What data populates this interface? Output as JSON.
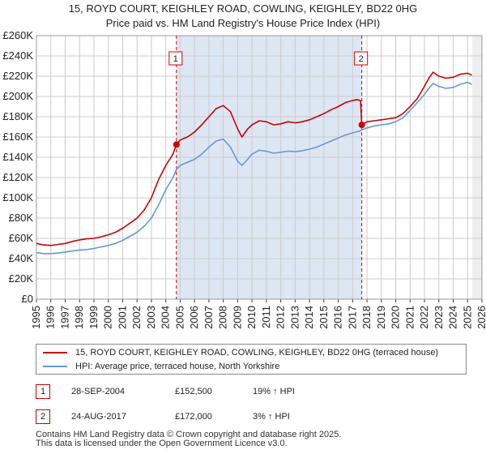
{
  "title_line1": "15, ROYD COURT, KEIGHLEY ROAD, COWLING, KEIGHLEY, BD22 0HG",
  "title_line2": "Price paid vs. HM Land Registry's House Price Index (HPI)",
  "chart_data": {
    "type": "line",
    "title": "15, ROYD COURT, KEIGHLEY ROAD, COWLING, KEIGHLEY, BD22 0HG — Price paid vs. HM Land Registry's House Price Index (HPI)",
    "xlabel": "",
    "ylabel": "",
    "xlim": [
      1995,
      2026
    ],
    "ylim": [
      0,
      260000
    ],
    "grid": true,
    "x_ticks": [
      "1995",
      "1996",
      "1997",
      "1998",
      "1999",
      "2000",
      "2001",
      "2002",
      "2003",
      "2004",
      "2005",
      "2006",
      "2007",
      "2008",
      "2009",
      "2010",
      "2011",
      "2012",
      "2013",
      "2014",
      "2015",
      "2016",
      "2017",
      "2018",
      "2019",
      "2020",
      "2021",
      "2022",
      "2023",
      "2024",
      "2025",
      "2026"
    ],
    "y_ticks": [
      "£0",
      "£20K",
      "£40K",
      "£60K",
      "£80K",
      "£100K",
      "£120K",
      "£140K",
      "£160K",
      "£180K",
      "£200K",
      "£220K",
      "£240K",
      "£260K"
    ],
    "series": [
      {
        "name": "15, ROYD COURT, KEIGHLEY ROAD, COWLING, KEIGHLEY, BD22 0HG (terraced house)",
        "color": "#cc0000",
        "points": [
          [
            1995.0,
            55000
          ],
          [
            1995.5,
            53500
          ],
          [
            1996.0,
            53000
          ],
          [
            1996.5,
            54000
          ],
          [
            1997.0,
            55000
          ],
          [
            1997.5,
            57000
          ],
          [
            1998.0,
            58500
          ],
          [
            1998.5,
            59500
          ],
          [
            1999.0,
            60000
          ],
          [
            1999.5,
            61500
          ],
          [
            2000.0,
            63500
          ],
          [
            2000.5,
            66000
          ],
          [
            2001.0,
            70000
          ],
          [
            2001.5,
            75000
          ],
          [
            2002.0,
            80000
          ],
          [
            2002.5,
            88000
          ],
          [
            2003.0,
            100000
          ],
          [
            2003.5,
            118000
          ],
          [
            2004.0,
            132000
          ],
          [
            2004.5,
            143000
          ],
          [
            2004.74,
            152500
          ],
          [
            2005.0,
            157000
          ],
          [
            2005.5,
            160000
          ],
          [
            2006.0,
            165000
          ],
          [
            2006.5,
            172000
          ],
          [
            2007.0,
            180000
          ],
          [
            2007.5,
            188000
          ],
          [
            2008.0,
            191000
          ],
          [
            2008.5,
            185000
          ],
          [
            2009.0,
            168000
          ],
          [
            2009.3,
            160000
          ],
          [
            2009.7,
            168000
          ],
          [
            2010.0,
            172000
          ],
          [
            2010.5,
            176000
          ],
          [
            2011.0,
            175000
          ],
          [
            2011.5,
            172000
          ],
          [
            2012.0,
            173000
          ],
          [
            2012.5,
            175000
          ],
          [
            2013.0,
            174000
          ],
          [
            2013.5,
            175000
          ],
          [
            2014.0,
            177000
          ],
          [
            2014.5,
            180000
          ],
          [
            2015.0,
            183000
          ],
          [
            2015.5,
            187000
          ],
          [
            2016.0,
            190000
          ],
          [
            2016.5,
            194000
          ],
          [
            2017.0,
            196000
          ],
          [
            2017.3,
            197000
          ],
          [
            2017.55,
            196000
          ],
          [
            2017.64,
            172000
          ],
          [
            2018.0,
            175000
          ],
          [
            2018.5,
            176000
          ],
          [
            2019.0,
            177000
          ],
          [
            2019.5,
            178000
          ],
          [
            2020.0,
            179000
          ],
          [
            2020.5,
            183000
          ],
          [
            2021.0,
            190000
          ],
          [
            2021.5,
            198000
          ],
          [
            2022.0,
            210000
          ],
          [
            2022.3,
            218000
          ],
          [
            2022.6,
            224000
          ],
          [
            2023.0,
            220000
          ],
          [
            2023.5,
            218000
          ],
          [
            2024.0,
            219000
          ],
          [
            2024.5,
            222000
          ],
          [
            2025.0,
            223000
          ],
          [
            2025.3,
            221000
          ]
        ]
      },
      {
        "name": "HPI: Average price, terraced house, North Yorkshire",
        "color": "#6699cc",
        "points": [
          [
            1995.0,
            46000
          ],
          [
            1995.5,
            45000
          ],
          [
            1996.0,
            45000
          ],
          [
            1996.5,
            45500
          ],
          [
            1997.0,
            46500
          ],
          [
            1997.5,
            47500
          ],
          [
            1998.0,
            48500
          ],
          [
            1998.5,
            49000
          ],
          [
            1999.0,
            50000
          ],
          [
            1999.5,
            51500
          ],
          [
            2000.0,
            53000
          ],
          [
            2000.5,
            55000
          ],
          [
            2001.0,
            58000
          ],
          [
            2001.5,
            62000
          ],
          [
            2002.0,
            66000
          ],
          [
            2002.5,
            72000
          ],
          [
            2003.0,
            80000
          ],
          [
            2003.5,
            93000
          ],
          [
            2004.0,
            108000
          ],
          [
            2004.5,
            120000
          ],
          [
            2004.74,
            128000
          ],
          [
            2005.0,
            132000
          ],
          [
            2005.5,
            135000
          ],
          [
            2006.0,
            138000
          ],
          [
            2006.5,
            143000
          ],
          [
            2007.0,
            150000
          ],
          [
            2007.5,
            156000
          ],
          [
            2008.0,
            158000
          ],
          [
            2008.5,
            150000
          ],
          [
            2009.0,
            136000
          ],
          [
            2009.3,
            132000
          ],
          [
            2009.7,
            138000
          ],
          [
            2010.0,
            143000
          ],
          [
            2010.5,
            147000
          ],
          [
            2011.0,
            146000
          ],
          [
            2011.5,
            144000
          ],
          [
            2012.0,
            145000
          ],
          [
            2012.5,
            146000
          ],
          [
            2013.0,
            145500
          ],
          [
            2013.5,
            146500
          ],
          [
            2014.0,
            148000
          ],
          [
            2014.5,
            150000
          ],
          [
            2015.0,
            153000
          ],
          [
            2015.5,
            156000
          ],
          [
            2016.0,
            159000
          ],
          [
            2016.5,
            162000
          ],
          [
            2017.0,
            164000
          ],
          [
            2017.5,
            166000
          ],
          [
            2017.64,
            167000
          ],
          [
            2018.0,
            169000
          ],
          [
            2018.5,
            171000
          ],
          [
            2019.0,
            172000
          ],
          [
            2019.5,
            173000
          ],
          [
            2020.0,
            175000
          ],
          [
            2020.5,
            179000
          ],
          [
            2021.0,
            186000
          ],
          [
            2021.5,
            194000
          ],
          [
            2022.0,
            202000
          ],
          [
            2022.3,
            208000
          ],
          [
            2022.6,
            213000
          ],
          [
            2023.0,
            210000
          ],
          [
            2023.5,
            208000
          ],
          [
            2024.0,
            209000
          ],
          [
            2024.5,
            212000
          ],
          [
            2025.0,
            214000
          ],
          [
            2025.3,
            212000
          ]
        ]
      }
    ],
    "sales": [
      {
        "label": "1",
        "x": 2004.74,
        "value": 152500
      },
      {
        "label": "2",
        "x": 2017.64,
        "value": 172000
      }
    ],
    "shaded_ranges": [
      [
        2004.74,
        2017.64
      ]
    ],
    "forecast_from": 2025.33
  },
  "legend": {
    "property_label": "15, ROYD COURT, KEIGHLEY ROAD, COWLING, KEIGHLEY, BD22 0HG (terraced house)",
    "hpi_label": "HPI: Average price, terraced house, North Yorkshire"
  },
  "sales_table": [
    {
      "num": "1",
      "date": "28-SEP-2004",
      "price": "£152,500",
      "hpi": "19% ↑ HPI"
    },
    {
      "num": "2",
      "date": "24-AUG-2017",
      "price": "£172,000",
      "hpi": "3% ↑ HPI"
    }
  ],
  "footer": {
    "line1": "Contains HM Land Registry data © Crown copyright and database right 2025.",
    "line2": "This data is licensed under the Open Government Licence v3.0."
  },
  "colors": {
    "property": "#cc0000",
    "hpi": "#6699cc",
    "shade": "#dde6f3",
    "grid": "#cccccc"
  }
}
